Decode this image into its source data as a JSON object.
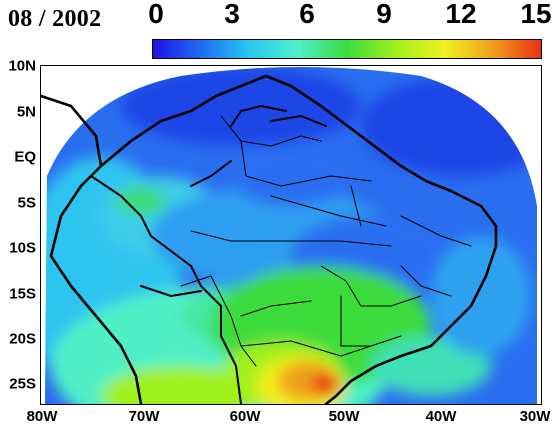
{
  "title": "08 / 2002",
  "colorbar": {
    "ticks": [
      "0",
      "3",
      "6",
      "9",
      "12",
      "15"
    ],
    "colors": [
      "#1e14e6",
      "#1e6ef0",
      "#28c8f0",
      "#50f0c8",
      "#3cdc3c",
      "#a0f01e",
      "#f0f01e",
      "#f0a01e",
      "#e63214"
    ]
  },
  "axes": {
    "x_labels": [
      "80W",
      "70W",
      "60W",
      "50W",
      "40W",
      "30W"
    ],
    "y_labels": [
      "10N",
      "5N",
      "EQ",
      "5S",
      "10S",
      "15S",
      "20S",
      "25S"
    ]
  }
}
